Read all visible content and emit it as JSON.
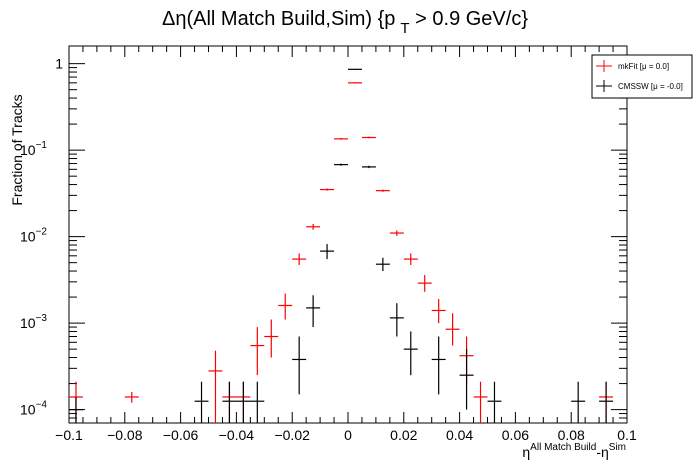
{
  "chart_data": {
    "type": "scatter",
    "title_prefix": "Δη(All Match Build,Sim) {p",
    "title_sub": "T",
    "title_suffix": " > 0.9 GeV/c}",
    "ylabel": "Fraction of Tracks",
    "xlabel_eta": "η",
    "xlabel_sup1": "All Match Build",
    "xlabel_mid": "-η",
    "xlabel_sup2": "Sim",
    "xlim": [
      -0.1,
      0.1
    ],
    "ylim": [
      7e-05,
      1.6
    ],
    "yscale": "log",
    "x_ticks": [
      {
        "v": -0.1,
        "label": "−0.1"
      },
      {
        "v": -0.08,
        "label": "−0.08"
      },
      {
        "v": -0.06,
        "label": "−0.06"
      },
      {
        "v": -0.04,
        "label": "−0.04"
      },
      {
        "v": -0.02,
        "label": "−0.02"
      },
      {
        "v": 0,
        "label": "0"
      },
      {
        "v": 0.02,
        "label": "0.02"
      },
      {
        "v": 0.04,
        "label": "0.04"
      },
      {
        "v": 0.06,
        "label": "0.06"
      },
      {
        "v": 0.08,
        "label": "0.08"
      },
      {
        "v": 0.1,
        "label": "0.1"
      }
    ],
    "y_ticks": [
      {
        "v": 1,
        "base": "1",
        "exp": ""
      },
      {
        "v": 0.1,
        "base": "10",
        "exp": "−1"
      },
      {
        "v": 0.01,
        "base": "10",
        "exp": "−2"
      },
      {
        "v": 0.001,
        "base": "10",
        "exp": "−3"
      },
      {
        "v": 0.0001,
        "base": "10",
        "exp": "−4"
      }
    ],
    "bin_halfwidth": 0.0025,
    "legend_position": "top-right",
    "series": [
      {
        "name": "mkFit  [μ = 0.0]",
        "color": "#ff0000",
        "points": [
          {
            "x": -0.0975,
            "y": 0.00014,
            "lo": 7e-05,
            "hi": 0.00021
          },
          {
            "x": -0.0775,
            "y": 0.00014,
            "lo": 0.00012,
            "hi": 0.00016
          },
          {
            "x": -0.0475,
            "y": 0.00028,
            "lo": 7e-05,
            "hi": 0.00048
          },
          {
            "x": -0.0425,
            "y": 0.00014,
            "lo": 7e-05,
            "hi": 0.00021
          },
          {
            "x": -0.0375,
            "y": 0.00014,
            "lo": 7e-05,
            "hi": 0.00021
          },
          {
            "x": -0.0325,
            "y": 0.00055,
            "lo": 0.00025,
            "hi": 0.0009
          },
          {
            "x": -0.0275,
            "y": 0.0007,
            "lo": 0.0004,
            "hi": 0.0011
          },
          {
            "x": -0.0225,
            "y": 0.0016,
            "lo": 0.0011,
            "hi": 0.0022
          },
          {
            "x": -0.0175,
            "y": 0.0055,
            "lo": 0.0047,
            "hi": 0.0064
          },
          {
            "x": -0.0125,
            "y": 0.013,
            "lo": 0.012,
            "hi": 0.014
          },
          {
            "x": -0.0075,
            "y": 0.035,
            "lo": 0.034,
            "hi": 0.036
          },
          {
            "x": -0.0025,
            "y": 0.135,
            "lo": 0.132,
            "hi": 0.138
          },
          {
            "x": 0.0025,
            "y": 0.6,
            "lo": 0.59,
            "hi": 0.61
          },
          {
            "x": 0.0075,
            "y": 0.14,
            "lo": 0.137,
            "hi": 0.143
          },
          {
            "x": 0.0125,
            "y": 0.034,
            "lo": 0.033,
            "hi": 0.035
          },
          {
            "x": 0.0175,
            "y": 0.011,
            "lo": 0.0102,
            "hi": 0.0118
          },
          {
            "x": 0.0225,
            "y": 0.0055,
            "lo": 0.0047,
            "hi": 0.0064
          },
          {
            "x": 0.0275,
            "y": 0.0029,
            "lo": 0.0023,
            "hi": 0.0036
          },
          {
            "x": 0.0325,
            "y": 0.0014,
            "lo": 0.001,
            "hi": 0.0019
          },
          {
            "x": 0.0375,
            "y": 0.00085,
            "lo": 0.00055,
            "hi": 0.0013
          },
          {
            "x": 0.0425,
            "y": 0.00042,
            "lo": 0.0002,
            "hi": 0.0007
          },
          {
            "x": 0.0475,
            "y": 0.00014,
            "lo": 7e-05,
            "hi": 0.00021
          },
          {
            "x": 0.0925,
            "y": 0.00014,
            "lo": 7e-05,
            "hi": 0.00021
          }
        ]
      },
      {
        "name": "CMSSW  [μ = -0.0]",
        "color": "#000000",
        "points": [
          {
            "x": -0.0975,
            "y": 0.0001,
            "lo": 7e-05,
            "hi": 0.00014
          },
          {
            "x": -0.0525,
            "y": 0.000125,
            "lo": 7e-05,
            "hi": 0.00021
          },
          {
            "x": -0.0425,
            "y": 0.000125,
            "lo": 7e-05,
            "hi": 0.00021
          },
          {
            "x": -0.0375,
            "y": 0.000125,
            "lo": 7e-05,
            "hi": 0.00021
          },
          {
            "x": -0.0325,
            "y": 0.000125,
            "lo": 7e-05,
            "hi": 0.00021
          },
          {
            "x": -0.0175,
            "y": 0.00038,
            "lo": 0.00015,
            "hi": 0.0007
          },
          {
            "x": -0.0125,
            "y": 0.0015,
            "lo": 0.0009,
            "hi": 0.0021
          },
          {
            "x": -0.0075,
            "y": 0.0068,
            "lo": 0.0055,
            "hi": 0.0082
          },
          {
            "x": -0.0025,
            "y": 0.068,
            "lo": 0.066,
            "hi": 0.07
          },
          {
            "x": 0.0025,
            "y": 0.86,
            "lo": 0.85,
            "hi": 0.87
          },
          {
            "x": 0.0075,
            "y": 0.064,
            "lo": 0.062,
            "hi": 0.066
          },
          {
            "x": 0.0125,
            "y": 0.0048,
            "lo": 0.004,
            "hi": 0.0057
          },
          {
            "x": 0.0175,
            "y": 0.00115,
            "lo": 0.0007,
            "hi": 0.0017
          },
          {
            "x": 0.0225,
            "y": 0.0005,
            "lo": 0.00025,
            "hi": 0.0008
          },
          {
            "x": 0.0325,
            "y": 0.00038,
            "lo": 0.00015,
            "hi": 0.0007
          },
          {
            "x": 0.0425,
            "y": 0.00025,
            "lo": 0.0001,
            "hi": 0.0005
          },
          {
            "x": 0.0525,
            "y": 0.000125,
            "lo": 7e-05,
            "hi": 0.00021
          },
          {
            "x": 0.0825,
            "y": 0.000125,
            "lo": 7e-05,
            "hi": 0.00021
          },
          {
            "x": 0.0925,
            "y": 0.000125,
            "lo": 7e-05,
            "hi": 0.00021
          }
        ]
      }
    ]
  }
}
